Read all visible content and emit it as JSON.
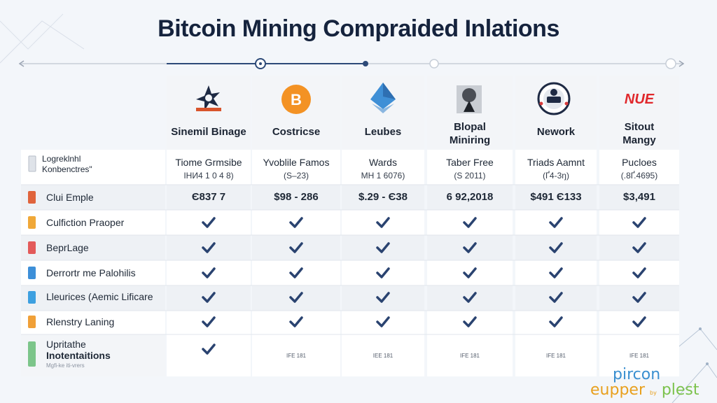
{
  "title": "Bitcoin Mining Compraided Inlations",
  "columns": [
    {
      "name": "Sinemil Binage",
      "logo": "star-badge-icon",
      "row1_a": "Tiome Grmsibe",
      "row1_b": "ІНИ4 1 0 4 8)",
      "price": "Є837 7",
      "last": "check"
    },
    {
      "name": "Costricse",
      "logo": "bitcoin-coin-icon",
      "row1_a": "Yvoblile Famos",
      "row1_b": "(S–23)",
      "price": "$98 - 286",
      "last": "IFE 181"
    },
    {
      "name": "Leubes",
      "logo": "blue-pyramid-icon",
      "row1_a": "Wards",
      "row1_b": "ΜΗ 1 6076)",
      "price": "$.29 - Є38",
      "last": "IEE 181"
    },
    {
      "name": "Blopal Miniring",
      "logo": "miner-figure-icon",
      "row1_a": "Taber Free",
      "row1_b": "(S 2011)",
      "price": "6 92,2018",
      "last": "IFE 181"
    },
    {
      "name": "Nework",
      "logo": "round-emblem-icon",
      "row1_a": "Triads Aamnt",
      "row1_b": "(Ґ4-3ŋ)",
      "price": "$491 Є133",
      "last": "IFE 181"
    },
    {
      "name": "Sitout Mangy",
      "logo": "red-wordmark-icon",
      "logo_text": "NUE",
      "row1_a": "Pucloes",
      "row1_b": "(.8Ґ.4695)",
      "price": "$3,491",
      "last": "IFE 181"
    }
  ],
  "row_labels": {
    "header_a": "Logreklnhl",
    "header_b": "Konbenctres\"",
    "rows": [
      "Clui Emple",
      "Culfiction Praoper",
      "BeprLage",
      "Derrortr me Palohilis",
      "Lleurices (Aemic Lificare",
      "Rlenstry Laning"
    ],
    "last_a": "Upritathe",
    "last_b": "Inotentaitions",
    "last_c": "Mgfi-ke iti-vrers"
  },
  "icon_colors": [
    "#e0643c",
    "#f0a838",
    "#e35a5a",
    "#3d8fd8",
    "#3da0e0",
    "#f0a038"
  ],
  "watermark": {
    "line1": "pircon",
    "line2": "eupper",
    "line3": "plest",
    "tiny": "by"
  }
}
